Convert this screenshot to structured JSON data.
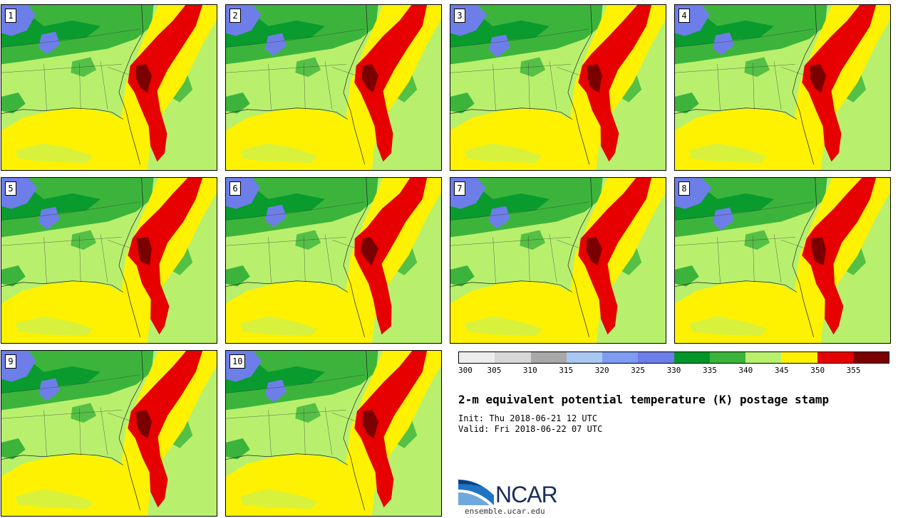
{
  "panels": [
    {
      "label": "1"
    },
    {
      "label": "2"
    },
    {
      "label": "3"
    },
    {
      "label": "4"
    },
    {
      "label": "5"
    },
    {
      "label": "6"
    },
    {
      "label": "7"
    },
    {
      "label": "8"
    },
    {
      "label": "9"
    },
    {
      "label": "10"
    }
  ],
  "colorbar": {
    "colors": [
      "#ededed",
      "#d7d7d7",
      "#a8a8a8",
      "#aac7f2",
      "#7d9cf2",
      "#6e7ee8",
      "#00962a",
      "#3cb43c",
      "#b8f06e",
      "#fff200",
      "#e60000",
      "#7a0000"
    ],
    "ticks": [
      "300",
      "305",
      "310",
      "315",
      "320",
      "325",
      "330",
      "335",
      "340",
      "345",
      "350",
      "355"
    ]
  },
  "title": "2-m equivalent potential temperature (K) postage stamp",
  "init": "Init: Thu 2018-06-21 12 UTC",
  "valid": "Valid: Fri 2018-06-22 07 UTC",
  "logo": {
    "text": "NCAR",
    "url": "ensemble.ucar.edu"
  }
}
